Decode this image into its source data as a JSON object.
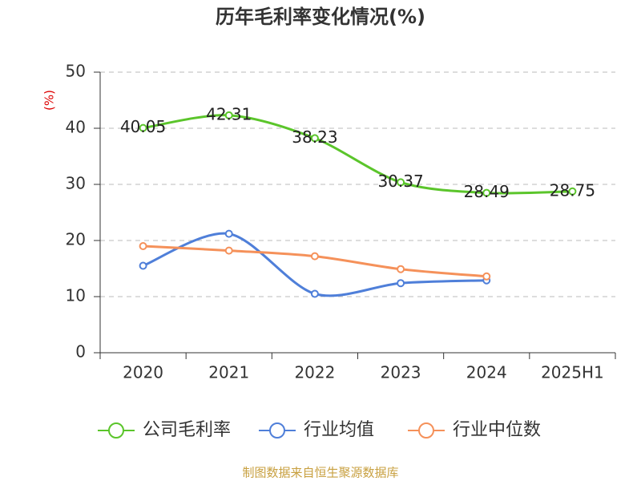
{
  "chart_data": {
    "type": "line",
    "title": "历年毛利率变化情况(%)",
    "y_label": "(%)",
    "source": "制图数据来自恒生聚源数据库",
    "categories": [
      "2020",
      "2021",
      "2022",
      "2023",
      "2024",
      "2025H1"
    ],
    "series": [
      {
        "name": "公司毛利率",
        "color": "#5bc52b",
        "values": [
          40.05,
          42.31,
          38.23,
          30.37,
          28.49,
          28.75
        ],
        "show_labels": true
      },
      {
        "name": "行业均值",
        "color": "#4f7fd9",
        "values": [
          15.5,
          21.2,
          10.5,
          12.4,
          12.9,
          null
        ]
      },
      {
        "name": "行业中位数",
        "color": "#f5915a",
        "values": [
          19.0,
          18.2,
          17.2,
          14.9,
          13.6,
          null
        ]
      }
    ],
    "ylim": [
      0,
      50
    ],
    "yticks": [
      0,
      10,
      20,
      30,
      40,
      50
    ],
    "grid": true,
    "legend": "bottom"
  }
}
